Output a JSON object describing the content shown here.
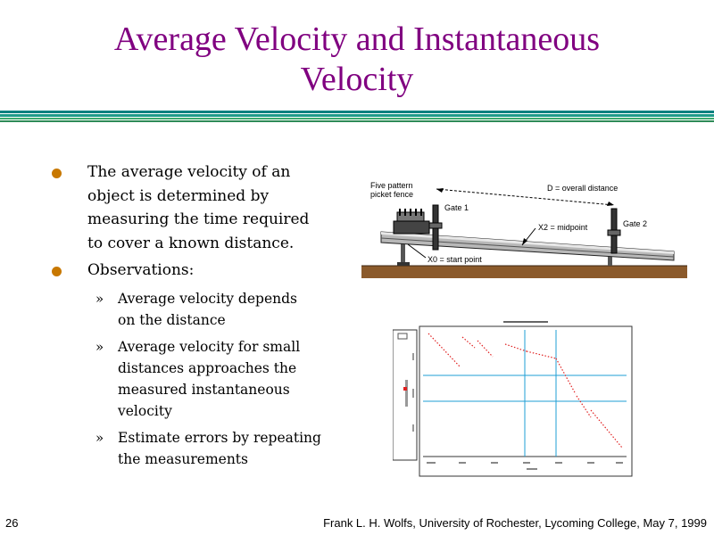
{
  "slide": {
    "title_line1": "Average Velocity and Instantaneous",
    "title_line2": "Velocity",
    "slide_number": "26",
    "footer": "Frank L. H. Wolfs, University of Rochester, Lycoming College, May 7, 1999"
  },
  "bullets": [
    {
      "lines": [
        "The average velocity of an",
        "object is determined by",
        "measuring the time required",
        "to cover a known distance."
      ]
    },
    {
      "lines": [
        "Observations:"
      ]
    }
  ],
  "sub_bullets": [
    {
      "lines": [
        "Average velocity depends",
        "on the distance"
      ]
    },
    {
      "lines": [
        "Average velocity for small",
        "distances approaches the",
        "measured instantaneous",
        "velocity"
      ]
    },
    {
      "lines": [
        "Estimate errors by repeating",
        "the measurements"
      ]
    }
  ],
  "sub_marker": "»",
  "diagram": {
    "label_fence": [
      "Five pattern",
      "picket fence"
    ],
    "label_distance": "D = overall distance",
    "label_gate1": "Gate 1",
    "label_gate2": "Gate 2",
    "label_midpoint": "X2 = midpoint",
    "label_start": "X0 = start point"
  },
  "colors": {
    "title": "#800080",
    "bullet": "#c87800",
    "rule_teal": "#008080",
    "rule_green": "#2e8b57",
    "ground": "#8b5a2b"
  }
}
